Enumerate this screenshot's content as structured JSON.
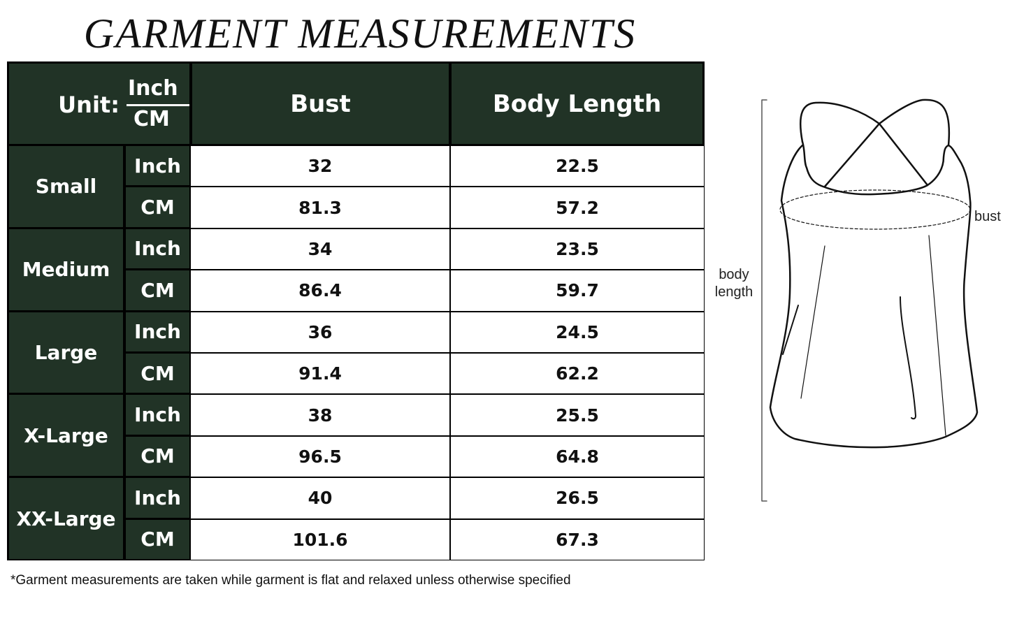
{
  "title": "GARMENT MEASUREMENTS",
  "header": {
    "unit_label": "Unit:",
    "unit_top": "Inch",
    "unit_bottom": "CM",
    "col_bust": "Bust",
    "col_length": "Body Length"
  },
  "colors": {
    "header_bg": "#213326",
    "header_text": "#ffffff"
  },
  "sizes": [
    {
      "name": "Small",
      "rows": [
        {
          "unit": "Inch",
          "bust": "32",
          "length": "22.5"
        },
        {
          "unit": "CM",
          "bust": "81.3",
          "length": "57.2"
        }
      ]
    },
    {
      "name": "Medium",
      "rows": [
        {
          "unit": "Inch",
          "bust": "34",
          "length": "23.5"
        },
        {
          "unit": "CM",
          "bust": "86.4",
          "length": "59.7"
        }
      ]
    },
    {
      "name": "Large",
      "rows": [
        {
          "unit": "Inch",
          "bust": "36",
          "length": "24.5"
        },
        {
          "unit": "CM",
          "bust": "91.4",
          "length": "62.2"
        }
      ]
    },
    {
      "name": "X-Large",
      "rows": [
        {
          "unit": "Inch",
          "bust": "38",
          "length": "25.5"
        },
        {
          "unit": "CM",
          "bust": "96.5",
          "length": "64.8"
        }
      ]
    },
    {
      "name": "XX-Large",
      "rows": [
        {
          "unit": "Inch",
          "bust": "40",
          "length": "26.5"
        },
        {
          "unit": "CM",
          "bust": "101.6",
          "length": "67.3"
        }
      ]
    }
  ],
  "footnote": "*Garment measurements are taken while garment is flat and relaxed unless otherwise specified",
  "diagram": {
    "bust_label": "bust",
    "length_label_1": "body",
    "length_label_2": "length"
  }
}
